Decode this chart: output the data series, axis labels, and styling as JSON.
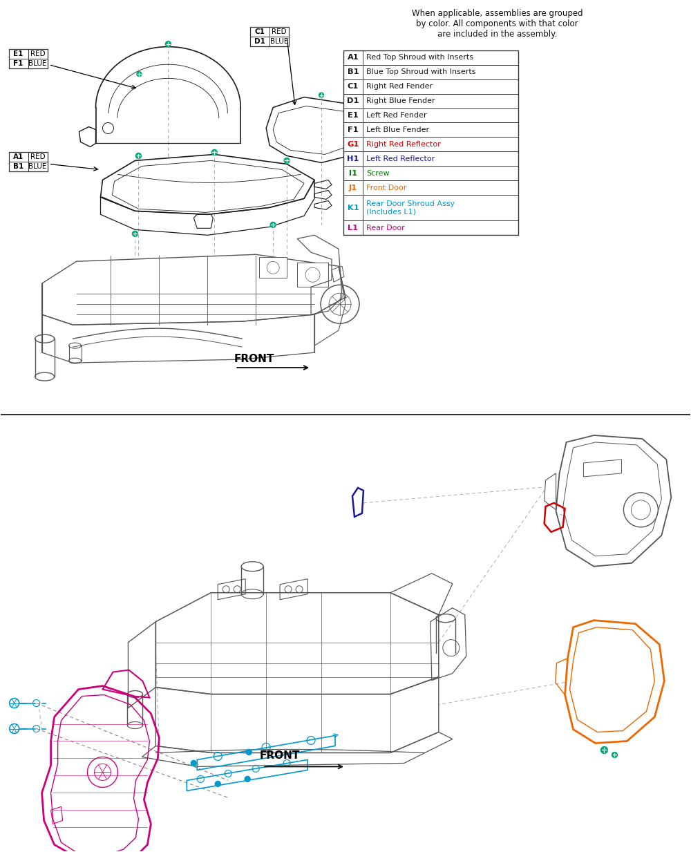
{
  "fig_width": 10.0,
  "fig_height": 12.33,
  "bg_color": "#ffffff",
  "legend_note": "When applicable, assemblies are grouped\nby color. All components with that color\nare included in the assembly.",
  "legend_items": [
    {
      "code": "A1",
      "desc": "Red Top Shroud with Inserts",
      "code_color": "#1a1a1a",
      "desc_color": "#1a1a1a"
    },
    {
      "code": "B1",
      "desc": "Blue Top Shroud with Inserts",
      "code_color": "#1a1a1a",
      "desc_color": "#1a1a1a"
    },
    {
      "code": "C1",
      "desc": "Right Red Fender",
      "code_color": "#1a1a1a",
      "desc_color": "#1a1a1a"
    },
    {
      "code": "D1",
      "desc": "Right Blue Fender",
      "code_color": "#1a1a1a",
      "desc_color": "#1a1a1a"
    },
    {
      "code": "E1",
      "desc": "Left Red Fender",
      "code_color": "#1a1a1a",
      "desc_color": "#1a1a1a"
    },
    {
      "code": "F1",
      "desc": "Left Blue Fender",
      "code_color": "#1a1a1a",
      "desc_color": "#1a1a1a"
    },
    {
      "code": "G1",
      "desc": "Right Red Reflector",
      "code_color": "#cc0000",
      "desc_color": "#cc0000"
    },
    {
      "code": "H1",
      "desc": "Left Red Reflector",
      "code_color": "#1a1a99",
      "desc_color": "#1a1a99"
    },
    {
      "code": "I1",
      "desc": "Screw",
      "code_color": "#007700",
      "desc_color": "#007700"
    },
    {
      "code": "J1",
      "desc": "Front Door",
      "code_color": "#ee6600",
      "desc_color": "#ee6600"
    },
    {
      "code": "K1",
      "desc": "Rear Door Shroud Assy\n(Includes L1)",
      "code_color": "#0099cc",
      "desc_color": "#0099cc"
    },
    {
      "code": "L1",
      "desc": "Rear Door",
      "code_color": "#cc007a",
      "desc_color": "#cc007a"
    }
  ],
  "colors": {
    "black": "#1a1a1a",
    "red": "#cc0000",
    "blue": "#1a1a99",
    "green": "#007700",
    "orange": "#ee6600",
    "cyan": "#0099cc",
    "magenta": "#cc007a",
    "dark_gray": "#555555",
    "mid_gray": "#777777",
    "light_gray": "#aaaaaa",
    "screw_teal": "#00aa77"
  }
}
